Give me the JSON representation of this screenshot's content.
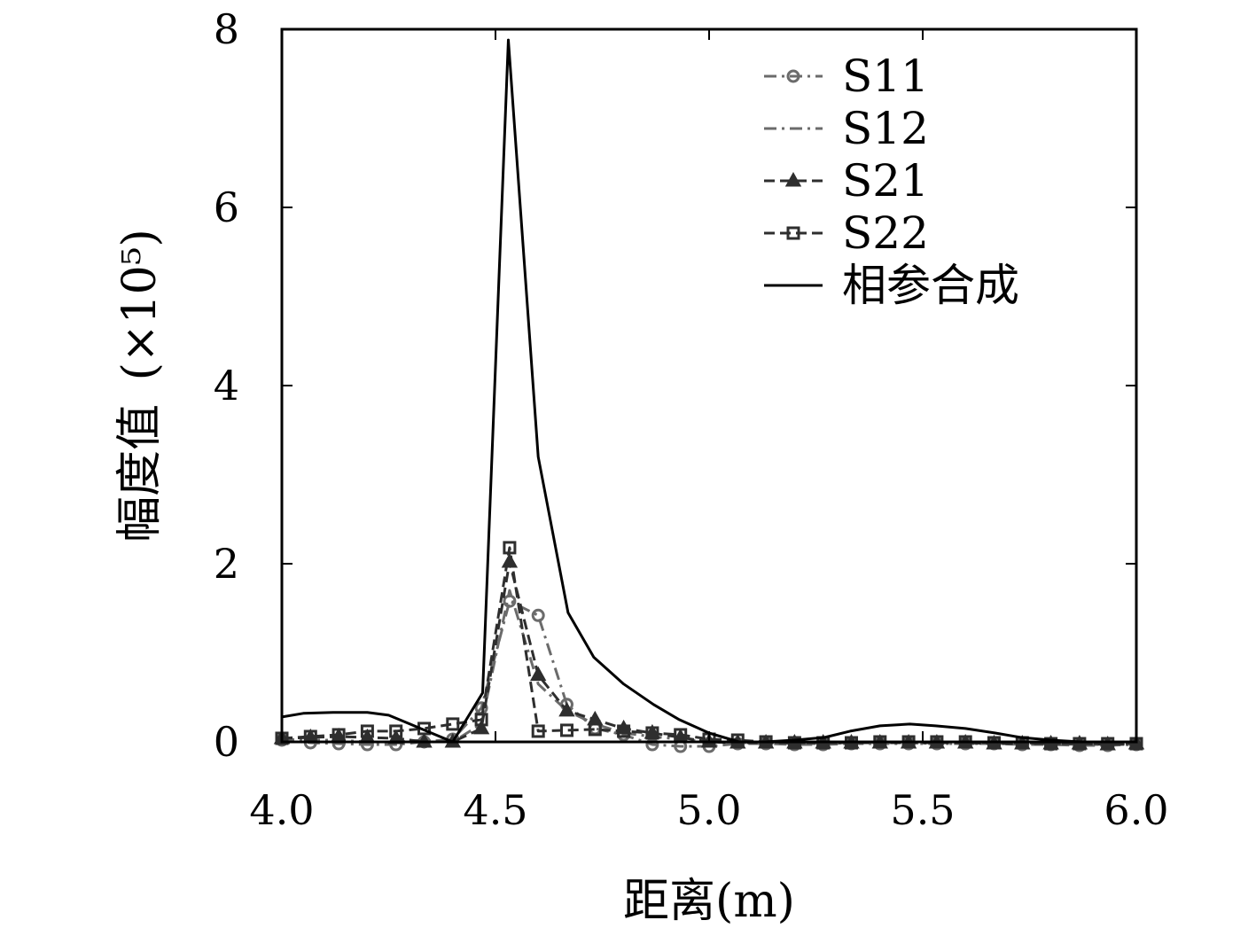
{
  "chart_data": {
    "type": "line",
    "xlabel": "距离(m)",
    "ylabel": "幅度值",
    "ylabel_multiplier": "(×10⁵)",
    "xlim": [
      4.0,
      6.0
    ],
    "ylim": [
      0,
      8
    ],
    "x_ticks": [
      "4.0",
      "4.5",
      "5.0",
      "5.5",
      "6.0"
    ],
    "y_ticks": [
      "0",
      "2",
      "4",
      "6",
      "8"
    ],
    "legend_position": "top-right",
    "grid": false,
    "series": [
      {
        "name": "S11",
        "style": "dash-dot",
        "marker": "circle",
        "color": "#6b6b6b",
        "x": [
          4.0,
          4.067,
          4.133,
          4.2,
          4.267,
          4.333,
          4.4,
          4.467,
          4.533,
          4.6,
          4.667,
          4.733,
          4.8,
          4.867,
          4.933,
          5.0,
          5.067,
          5.133,
          5.2,
          5.267,
          5.333,
          5.4,
          5.467,
          5.533,
          5.6,
          5.667,
          5.733,
          5.8,
          5.867,
          5.933,
          6.0
        ],
        "y": [
          0.02,
          -0.01,
          -0.02,
          -0.03,
          -0.03,
          0.0,
          0.03,
          0.38,
          1.58,
          1.42,
          0.42,
          0.15,
          0.08,
          -0.03,
          -0.05,
          -0.05,
          -0.02,
          -0.02,
          -0.03,
          -0.03,
          -0.02,
          -0.02,
          -0.02,
          -0.02,
          -0.02,
          -0.02,
          -0.03,
          -0.03,
          -0.04,
          -0.04,
          -0.03
        ]
      },
      {
        "name": "S12",
        "style": "dash-dot",
        "marker": "none",
        "color": "#6b6b6b",
        "x": [
          4.0,
          4.067,
          4.133,
          4.2,
          4.267,
          4.333,
          4.4,
          4.467,
          4.533,
          4.6,
          4.667,
          4.733,
          4.8,
          4.867,
          4.933,
          5.0,
          5.067,
          5.133,
          5.2,
          5.267,
          5.333,
          5.4,
          5.467,
          5.533,
          5.6,
          5.667,
          5.733,
          5.8,
          5.867,
          5.933,
          6.0
        ],
        "y": [
          0.03,
          0.02,
          0.02,
          0.0,
          0.0,
          0.02,
          0.0,
          0.2,
          1.7,
          0.65,
          0.35,
          0.2,
          0.1,
          0.06,
          0.03,
          0.0,
          -0.01,
          -0.01,
          -0.02,
          -0.02,
          -0.01,
          -0.01,
          -0.01,
          -0.02,
          -0.02,
          -0.02,
          -0.02,
          -0.02,
          -0.03,
          -0.03,
          -0.03
        ]
      },
      {
        "name": "S21",
        "style": "dash",
        "marker": "triangle",
        "color": "#2e2e2e",
        "x": [
          4.0,
          4.067,
          4.133,
          4.2,
          4.267,
          4.333,
          4.4,
          4.467,
          4.533,
          4.6,
          4.667,
          4.733,
          4.8,
          4.867,
          4.933,
          5.0,
          5.067,
          5.133,
          5.2,
          5.267,
          5.333,
          5.4,
          5.467,
          5.533,
          5.6,
          5.667,
          5.733,
          5.8,
          5.867,
          5.933,
          6.0
        ],
        "y": [
          0.04,
          0.05,
          0.06,
          0.05,
          0.04,
          0.0,
          0.0,
          0.15,
          2.02,
          0.75,
          0.35,
          0.25,
          0.15,
          0.1,
          0.05,
          0.0,
          -0.01,
          -0.01,
          -0.01,
          -0.01,
          -0.01,
          -0.01,
          -0.01,
          -0.01,
          -0.01,
          -0.02,
          -0.02,
          -0.02,
          -0.02,
          -0.03,
          -0.02
        ]
      },
      {
        "name": "S22",
        "style": "dash",
        "marker": "square",
        "color": "#2e2e2e",
        "x": [
          4.0,
          4.067,
          4.133,
          4.2,
          4.267,
          4.333,
          4.4,
          4.467,
          4.533,
          4.6,
          4.667,
          4.733,
          4.8,
          4.867,
          4.933,
          5.0,
          5.067,
          5.133,
          5.2,
          5.267,
          5.333,
          5.4,
          5.467,
          5.533,
          5.6,
          5.667,
          5.733,
          5.8,
          5.867,
          5.933,
          6.0
        ],
        "y": [
          0.04,
          0.06,
          0.08,
          0.12,
          0.12,
          0.15,
          0.2,
          0.25,
          2.18,
          0.12,
          0.13,
          0.14,
          0.12,
          0.1,
          0.08,
          0.03,
          0.02,
          0.0,
          -0.01,
          -0.01,
          -0.01,
          0.0,
          0.0,
          0.0,
          0.0,
          -0.01,
          -0.01,
          -0.02,
          -0.02,
          -0.02,
          -0.02
        ]
      },
      {
        "name": "相参合成",
        "style": "solid",
        "marker": "none",
        "color": "#000000",
        "x": [
          4.0,
          4.05,
          4.12,
          4.2,
          4.25,
          4.3,
          4.35,
          4.4,
          4.47,
          4.53,
          4.6,
          4.67,
          4.73,
          4.8,
          4.87,
          4.93,
          5.0,
          5.07,
          5.13,
          5.2,
          5.27,
          5.33,
          5.4,
          5.47,
          5.53,
          5.6,
          5.67,
          5.73,
          5.8,
          5.87,
          5.93,
          6.0
        ],
        "y": [
          0.28,
          0.32,
          0.33,
          0.33,
          0.3,
          0.2,
          0.1,
          0.0,
          0.55,
          7.88,
          3.2,
          1.45,
          0.95,
          0.65,
          0.42,
          0.25,
          0.1,
          0.0,
          0.0,
          0.02,
          0.05,
          0.12,
          0.18,
          0.2,
          0.18,
          0.15,
          0.1,
          0.05,
          0.02,
          0.0,
          0.0,
          0.0
        ]
      }
    ]
  }
}
